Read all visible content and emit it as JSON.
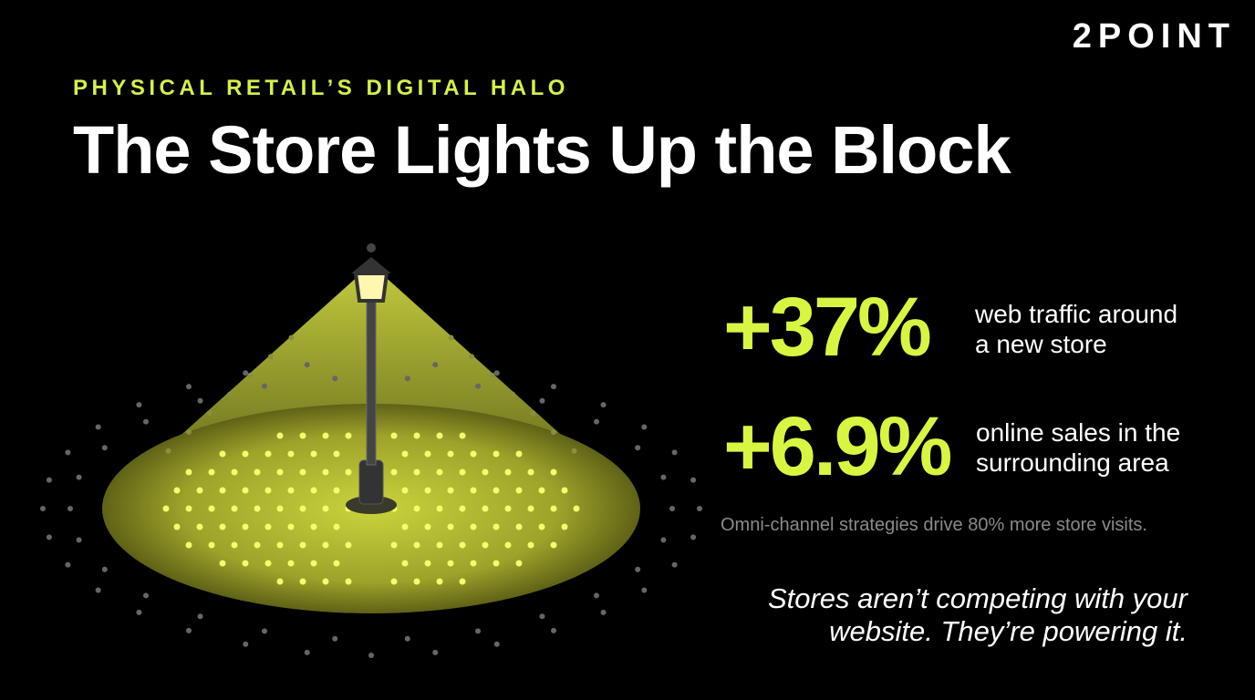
{
  "brand": "2POINT",
  "eyebrow": "PHYSICAL RETAIL’S DIGITAL HALO",
  "title": "The Store Lights Up the Block",
  "stats": [
    {
      "value": "+37%",
      "label": [
        "web traffic around",
        "a new store"
      ]
    },
    {
      "value": "+6.9%",
      "label": [
        "online sales in the",
        "surrounding area"
      ]
    }
  ],
  "footnote": "Omni-channel strategies drive 80% more store visits.",
  "quote": [
    "Stores aren’t competing with your",
    "website. They’re powering it."
  ]
}
